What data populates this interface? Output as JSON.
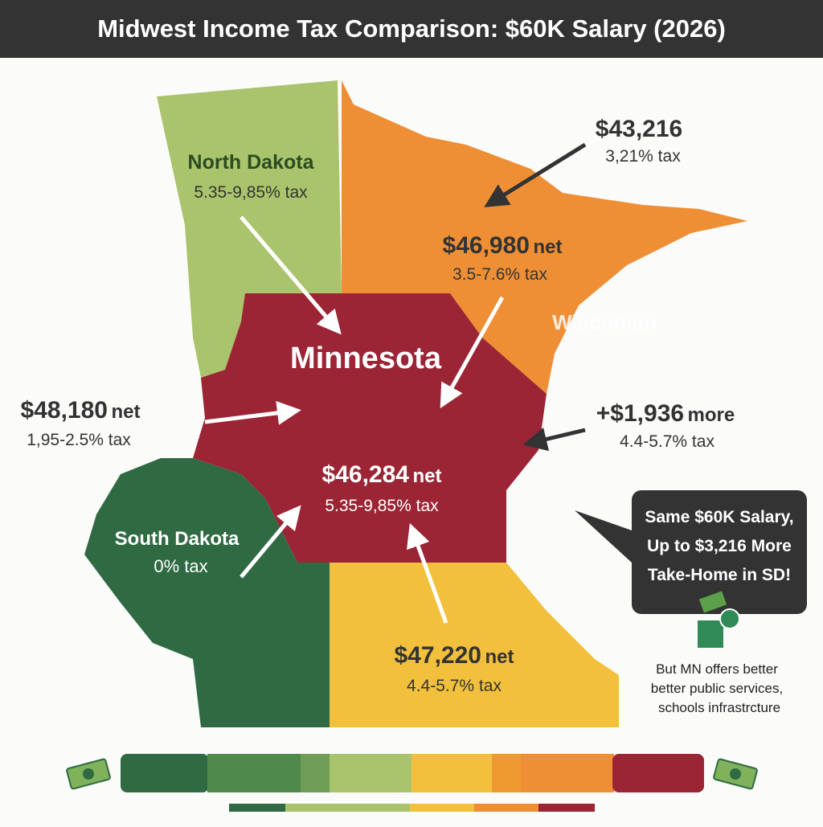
{
  "title": "Midwest Income Tax Comparison: $60K Salary (2026)",
  "regions": [
    {
      "label": "North Dakota",
      "note": "5.35-9,85% tax"
    },
    {
      "label": "Wisconsin"
    },
    {
      "label": "Minnesota"
    },
    {
      "label": "South Dakota",
      "note": "0% tax"
    }
  ],
  "callouts": [
    {
      "amount": "$43,216",
      "note": "3,21% tax"
    },
    {
      "amount": "$46,980",
      "suffix": "net",
      "note": "3.5-7.6% tax"
    },
    {
      "amount": "$48,180",
      "suffix": "net",
      "note": "1,95-2.5% tax"
    },
    {
      "amount": "+$1,936",
      "suffix": "more",
      "note": "4.4-5.7% tax"
    },
    {
      "amount": "$46,284",
      "suffix": "net",
      "note": "5.35-9,85% tax"
    },
    {
      "amount": "$47,220",
      "suffix": "net",
      "note": "4.4-5.7% tax"
    }
  ],
  "speech_bubble": {
    "lines": [
      "Same $60K Salary,",
      "Up to $3,216 More",
      "Take-Home in SD!"
    ]
  },
  "footnote": {
    "lines": [
      "But MN offers better",
      "better public services,",
      "schools infrastrcture"
    ]
  }
}
